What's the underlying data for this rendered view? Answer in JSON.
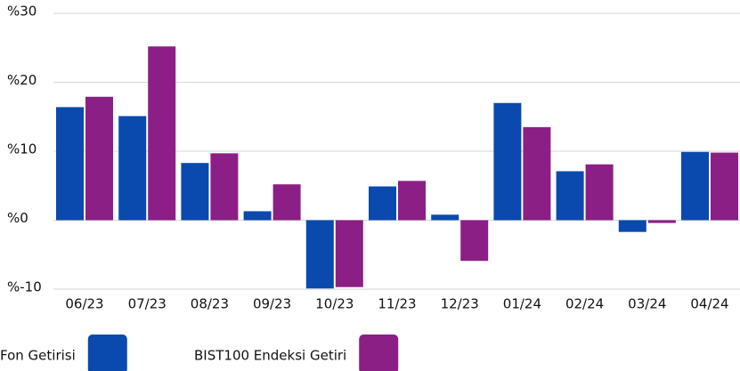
{
  "chart_data": {
    "type": "bar",
    "categories": [
      "06/23",
      "07/23",
      "08/23",
      "09/23",
      "10/23",
      "11/23",
      "12/23",
      "01/24",
      "02/24",
      "03/24",
      "04/24"
    ],
    "series": [
      {
        "name": "Fon Getirisi",
        "color": "#0a4aae",
        "values": [
          16.4,
          15.1,
          8.3,
          1.3,
          -9.9,
          4.9,
          0.8,
          17.0,
          7.1,
          -1.7,
          9.9
        ]
      },
      {
        "name": "BIST100 Endeksi Getiri",
        "color": "#8b1f86",
        "values": [
          17.9,
          25.2,
          9.7,
          5.2,
          -9.7,
          5.7,
          -5.9,
          13.5,
          8.1,
          -0.4,
          9.8
        ]
      }
    ],
    "ylim": [
      -10,
      30
    ],
    "yticks": [
      {
        "value": -10,
        "label": "%-10"
      },
      {
        "value": 0,
        "label": "%0"
      },
      {
        "value": 10,
        "label": "%10"
      },
      {
        "value": 20,
        "label": "%20"
      },
      {
        "value": 30,
        "label": "%30"
      }
    ],
    "grid": true
  }
}
